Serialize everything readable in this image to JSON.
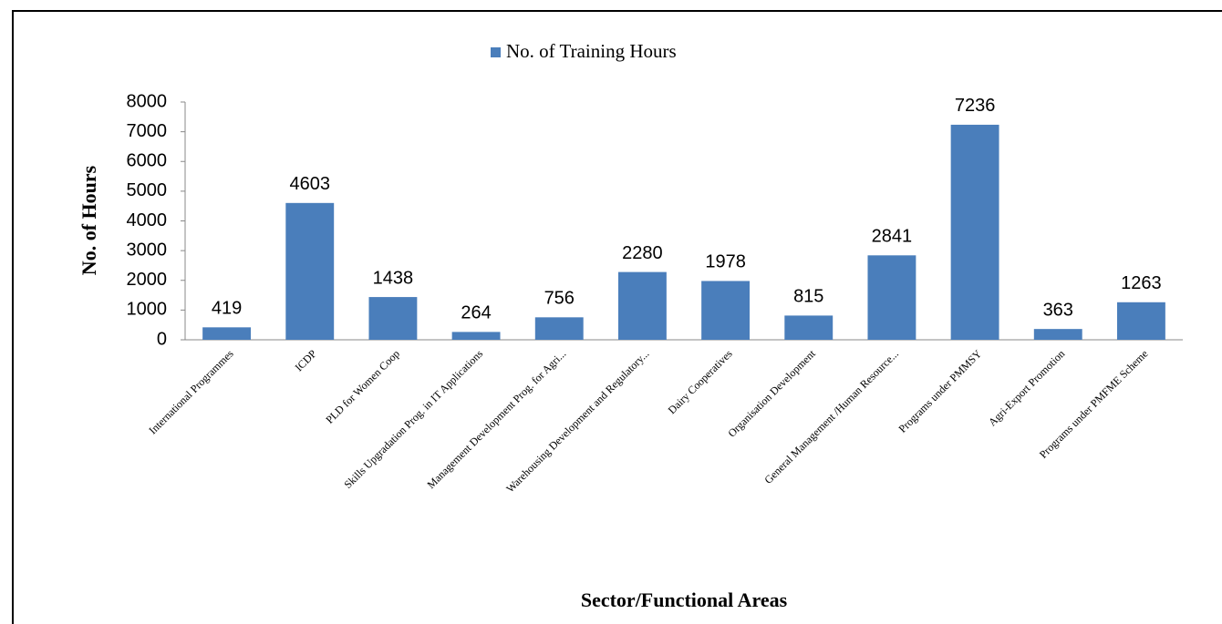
{
  "chart_data": {
    "type": "bar",
    "legend": "No. of Training Hours",
    "xlabel": "Sector/Functional Areas",
    "ylabel": "No. of Hours",
    "categories": [
      "International Programmes",
      "ICDP",
      "PLD for Women Coop",
      "Skills Upgradation Prog. in IT Applications",
      "Management Development Prog. for Agri...",
      "Warehousing Development and Regulatory...",
      "Dairy Cooperatives",
      "Organisation Development",
      "General Management /Human Resource...",
      "Programs under PMMSY",
      "Agri-Export Promotion",
      "Programs under PMFME Scheme"
    ],
    "values": [
      419,
      4603,
      1438,
      264,
      756,
      2280,
      1978,
      815,
      2841,
      7236,
      363,
      1263
    ],
    "color": "#4a7ebb",
    "ylim": [
      0,
      8000
    ],
    "yticks": [
      0,
      1000,
      2000,
      3000,
      4000,
      5000,
      6000,
      7000,
      8000
    ],
    "grid": false
  }
}
